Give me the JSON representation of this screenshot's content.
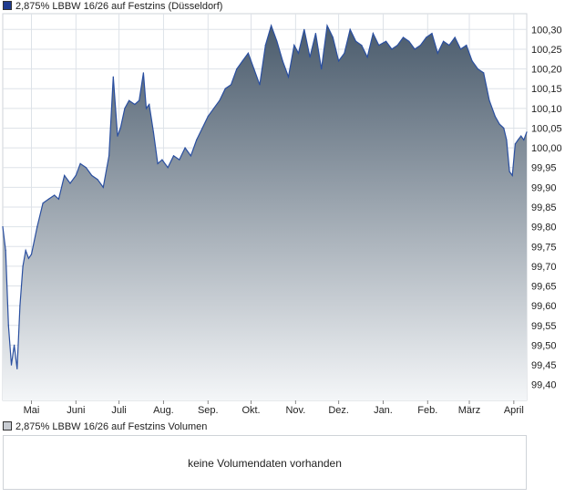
{
  "legend": {
    "price_label": "2,875% LBBW 16/26 auf Festzins (Düsseldorf)",
    "price_color": "#1f3b8f",
    "volume_label": "2,875% LBBW 16/26 auf Festzins Volumen",
    "volume_color": "#c8ccd2"
  },
  "volume": {
    "message": "keine Volumendaten vorhanden"
  },
  "colors": {
    "line": "#2a4fa0",
    "area_top": "#4a5b6c",
    "area_bottom": "#f4f6f8",
    "grid": "#dde2e8",
    "border": "#cfd3d8"
  },
  "chart_data": {
    "type": "area",
    "title": "2,875% LBBW 16/26 auf Festzins (Düsseldorf)",
    "xlabel": "",
    "ylabel": "",
    "ylim": [
      99.36,
      100.34
    ],
    "yticks": [
      "100,30",
      "100,25",
      "100,20",
      "100,15",
      "100,10",
      "100,05",
      "100,00",
      "99,95",
      "99,90",
      "99,85",
      "99,80",
      "99,75",
      "99,70",
      "99,65",
      "99,60",
      "99,55",
      "99,50",
      "99,45",
      "99,40"
    ],
    "xticks": [
      "Mai",
      "Juni",
      "Juli",
      "Aug.",
      "Sep.",
      "Okt.",
      "Nov.",
      "Dez.",
      "Jan.",
      "Feb.",
      "März",
      "April"
    ],
    "grid": true,
    "legend": "top-left",
    "series": [
      {
        "name": "2,875% LBBW 16/26 auf Festzins",
        "x": [
          "2023-04-11",
          "2023-04-13",
          "2023-04-15",
          "2023-04-17",
          "2023-04-19",
          "2023-04-21",
          "2023-04-23",
          "2023-04-25",
          "2023-04-27",
          "2023-04-29",
          "2023-05-01",
          "2023-05-05",
          "2023-05-09",
          "2023-05-13",
          "2023-05-17",
          "2023-05-20",
          "2023-05-24",
          "2023-05-28",
          "2023-06-01",
          "2023-06-04",
          "2023-06-08",
          "2023-06-12",
          "2023-06-16",
          "2023-06-20",
          "2023-06-24",
          "2023-06-27",
          "2023-06-30",
          "2023-07-02",
          "2023-07-05",
          "2023-07-08",
          "2023-07-12",
          "2023-07-15",
          "2023-07-18",
          "2023-07-20",
          "2023-07-22",
          "2023-07-25",
          "2023-07-28",
          "2023-07-31",
          "2023-08-04",
          "2023-08-08",
          "2023-08-12",
          "2023-08-16",
          "2023-08-20",
          "2023-08-24",
          "2023-08-28",
          "2023-09-01",
          "2023-09-05",
          "2023-09-09",
          "2023-09-13",
          "2023-09-17",
          "2023-09-21",
          "2023-09-25",
          "2023-09-29",
          "2023-10-03",
          "2023-10-07",
          "2023-10-11",
          "2023-10-15",
          "2023-10-19",
          "2023-10-23",
          "2023-10-27",
          "2023-10-31",
          "2023-11-03",
          "2023-11-07",
          "2023-11-11",
          "2023-11-15",
          "2023-11-19",
          "2023-11-23",
          "2023-11-27",
          "2023-12-01",
          "2023-12-05",
          "2023-12-09",
          "2023-12-13",
          "2023-12-17",
          "2023-12-21",
          "2023-12-25",
          "2023-12-29",
          "2024-01-03",
          "2024-01-07",
          "2024-01-11",
          "2024-01-15",
          "2024-01-19",
          "2024-01-23",
          "2024-01-27",
          "2024-01-31",
          "2024-02-04",
          "2024-02-08",
          "2024-02-12",
          "2024-02-16",
          "2024-02-20",
          "2024-02-24",
          "2024-02-28",
          "2024-03-03",
          "2024-03-07",
          "2024-03-11",
          "2024-03-15",
          "2024-03-19",
          "2024-03-22",
          "2024-03-25",
          "2024-03-27",
          "2024-03-29",
          "2024-03-31",
          "2024-04-02",
          "2024-04-04",
          "2024-04-06",
          "2024-04-08",
          "2024-04-10"
        ],
        "y": [
          99.8,
          99.74,
          99.55,
          99.45,
          99.5,
          99.44,
          99.6,
          99.7,
          99.74,
          99.72,
          99.73,
          99.8,
          99.86,
          99.87,
          99.88,
          99.87,
          99.93,
          99.91,
          99.93,
          99.96,
          99.95,
          99.93,
          99.92,
          99.9,
          99.98,
          100.18,
          100.03,
          100.05,
          100.1,
          100.12,
          100.11,
          100.12,
          100.19,
          100.1,
          100.11,
          100.04,
          99.96,
          99.97,
          99.95,
          99.98,
          99.97,
          100.0,
          99.98,
          100.02,
          100.05,
          100.08,
          100.1,
          100.12,
          100.15,
          100.16,
          100.2,
          100.22,
          100.24,
          100.2,
          100.16,
          100.26,
          100.31,
          100.27,
          100.22,
          100.18,
          100.26,
          100.24,
          100.3,
          100.23,
          100.29,
          100.2,
          100.31,
          100.28,
          100.22,
          100.24,
          100.3,
          100.27,
          100.26,
          100.23,
          100.29,
          100.26,
          100.27,
          100.25,
          100.26,
          100.28,
          100.27,
          100.25,
          100.26,
          100.28,
          100.29,
          100.24,
          100.27,
          100.26,
          100.28,
          100.25,
          100.26,
          100.22,
          100.2,
          100.19,
          100.12,
          100.08,
          100.06,
          100.05,
          100.02,
          99.94,
          99.93,
          100.01,
          100.02,
          100.03,
          100.02,
          100.04
        ]
      }
    ]
  }
}
